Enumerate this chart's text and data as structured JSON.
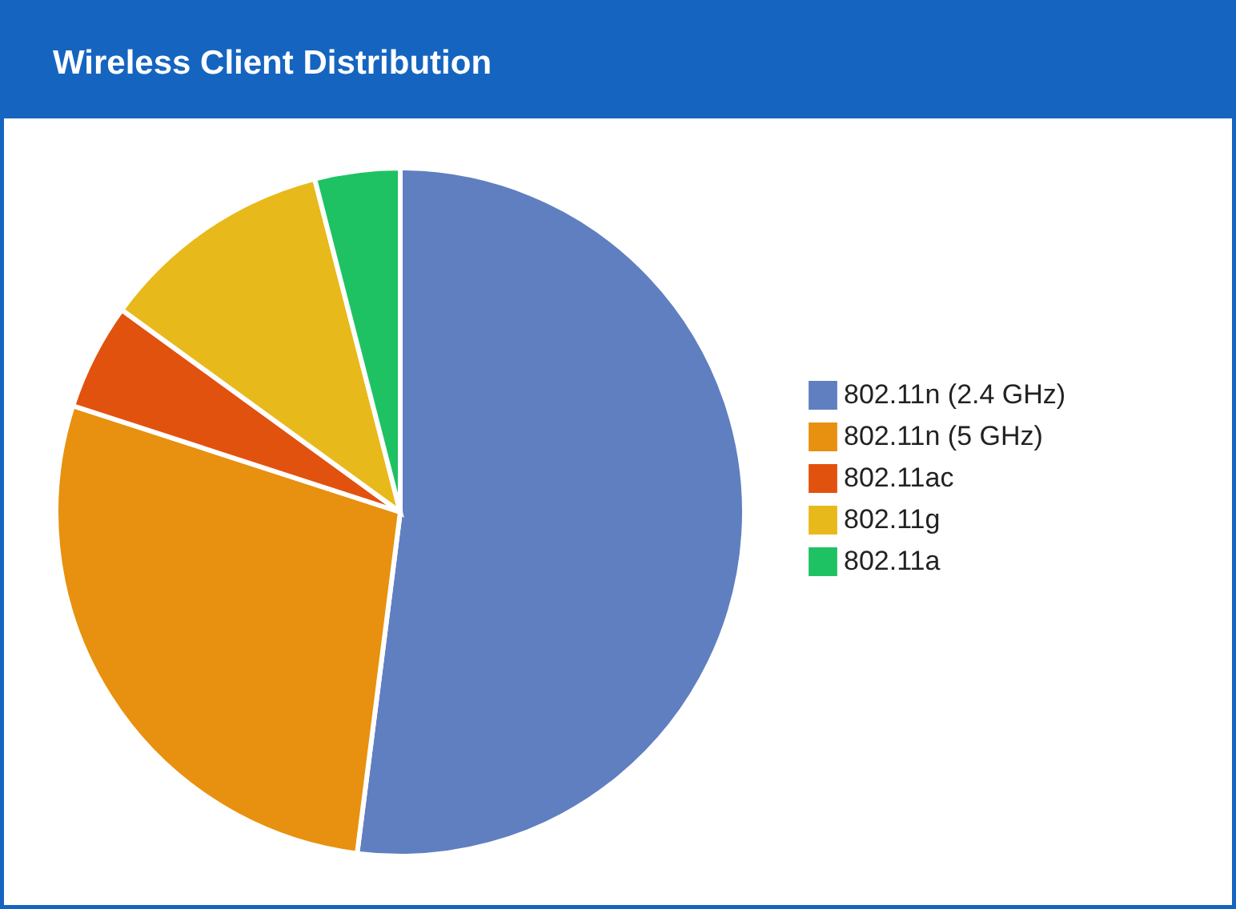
{
  "chart_data": {
    "type": "pie",
    "title": "Wireless Client Distribution",
    "categories": [
      "802.11n (2.4 GHz)",
      "802.11n (5 GHz)",
      "802.11ac",
      "802.11g",
      "802.11a"
    ],
    "values": [
      52,
      28,
      5,
      11,
      4
    ],
    "colors": [
      "#5f7fc0",
      "#e8900f",
      "#e2520f",
      "#e8b91a",
      "#1fc262"
    ],
    "legend": "right"
  }
}
